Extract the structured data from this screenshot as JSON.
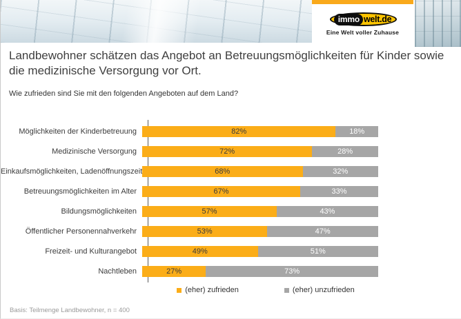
{
  "brand": {
    "logo_immo": "immo",
    "logo_welt": "welt.de",
    "tagline": "Eine Welt voller Zuhause",
    "accent_orange": "#F9A91B",
    "logo_yellow": "#FDC400",
    "logo_black": "#0d0d0d"
  },
  "header": {
    "title": "Landbewohner schätzen das Angebot an Betreuungsmöglichkeiten für Kinder sowie die medizinische Versorgung vor Ort.",
    "question": "Wie zufrieden sind Sie mit den folgenden Angeboten auf dem Land?"
  },
  "chart_data": {
    "type": "bar",
    "orientation": "horizontal",
    "stacked": true,
    "value_suffix": "%",
    "xlim": [
      0,
      100
    ],
    "legend_position": "bottom",
    "categories": [
      "Möglichkeiten der Kinderbetreuung",
      "Medizinische Versorgung",
      "Einkaufsmöglichkeiten, Ladenöffnungszeiten",
      "Betreuungsmöglichkeiten im Alter",
      "Bildungsmöglichkeiten",
      "Öffentlicher Personennahverkehr",
      "Freizeit- und Kulturangebot",
      "Nachtleben"
    ],
    "series": [
      {
        "name": "(eher) zufrieden",
        "color": "#FBAD18",
        "values": [
          82,
          72,
          68,
          67,
          57,
          53,
          49,
          27
        ]
      },
      {
        "name": "(eher) unzufrieden",
        "color": "#A6A6A6",
        "values": [
          18,
          28,
          32,
          33,
          43,
          47,
          51,
          73
        ]
      }
    ]
  },
  "footer": {
    "basis": "Basis: Teilmenge Landbewohner, n = 400"
  }
}
